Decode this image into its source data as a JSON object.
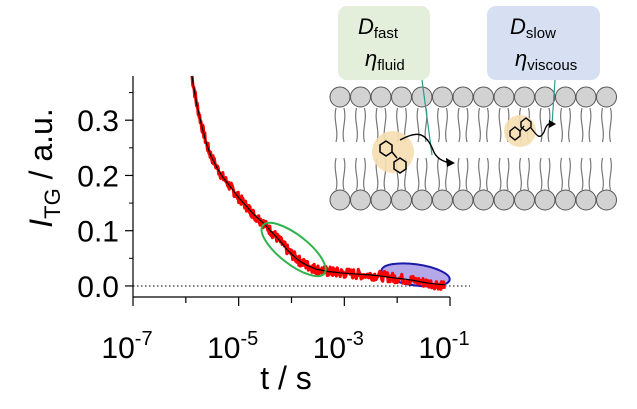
{
  "chart_data": {
    "type": "line",
    "x_scale": "log",
    "xlabel": "t / s",
    "ylabel": {
      "main": "I",
      "sub": "TG",
      "suffix": " / a.u."
    },
    "xlim": [
      1e-07,
      0.1
    ],
    "ylim": [
      -0.02,
      0.38
    ],
    "xticks": [
      {
        "value": 1e-07,
        "base": "10",
        "exp": "-7"
      },
      {
        "value": 1e-05,
        "base": "10",
        "exp": "-5"
      },
      {
        "value": 0.001,
        "base": "10",
        "exp": "-3"
      },
      {
        "value": 0.1,
        "base": "10",
        "exp": "-1"
      }
    ],
    "yticks": [
      {
        "value": 0.0,
        "label": "0.0"
      },
      {
        "value": 0.1,
        "label": "0.1"
      },
      {
        "value": 0.2,
        "label": "0.2"
      },
      {
        "value": 0.3,
        "label": "0.3"
      }
    ],
    "zero_line": {
      "y": 0.0,
      "style": "dotted"
    },
    "series": [
      {
        "role": "measured data",
        "color": "#ff0000",
        "points": [
          [
            1.3e-06,
            0.38
          ],
          [
            1.6e-06,
            0.33
          ],
          [
            2e-06,
            0.29
          ],
          [
            2.5e-06,
            0.255
          ],
          [
            3e-06,
            0.235
          ],
          [
            4e-06,
            0.212
          ],
          [
            5e-06,
            0.197
          ],
          [
            6.5e-06,
            0.183
          ],
          [
            8e-06,
            0.172
          ],
          [
            1e-05,
            0.16
          ],
          [
            1.3e-05,
            0.148
          ],
          [
            1.6e-05,
            0.138
          ],
          [
            2e-05,
            0.128
          ],
          [
            2.5e-05,
            0.12
          ],
          [
            3e-05,
            0.113
          ],
          [
            4e-05,
            0.1
          ],
          [
            5e-05,
            0.09
          ],
          [
            6.5e-05,
            0.078
          ],
          [
            8e-05,
            0.067
          ],
          [
            0.0001,
            0.058
          ],
          [
            0.00013,
            0.048
          ],
          [
            0.00016,
            0.042
          ],
          [
            0.0002,
            0.037
          ],
          [
            0.00025,
            0.033
          ],
          [
            0.0003,
            0.03
          ],
          [
            0.0004,
            0.028
          ],
          [
            0.0005,
            0.026
          ],
          [
            0.00065,
            0.025
          ],
          [
            0.0008,
            0.024
          ],
          [
            0.001,
            0.023
          ],
          [
            0.0015,
            0.022
          ],
          [
            0.002,
            0.021
          ],
          [
            0.003,
            0.02
          ],
          [
            0.004,
            0.019
          ],
          [
            0.006,
            0.017
          ],
          [
            0.008,
            0.015
          ],
          [
            0.01,
            0.014
          ],
          [
            0.015,
            0.012
          ],
          [
            0.02,
            0.01
          ],
          [
            0.03,
            0.007
          ],
          [
            0.04,
            0.005
          ],
          [
            0.06,
            0.003
          ],
          [
            0.08,
            0.002
          ]
        ]
      },
      {
        "role": "fit",
        "color": "#000000",
        "points": [
          [
            1.3e-06,
            0.38
          ],
          [
            1.6e-06,
            0.33
          ],
          [
            2e-06,
            0.29
          ],
          [
            2.5e-06,
            0.255
          ],
          [
            3e-06,
            0.235
          ],
          [
            4e-06,
            0.212
          ],
          [
            5e-06,
            0.197
          ],
          [
            6.5e-06,
            0.183
          ],
          [
            8e-06,
            0.172
          ],
          [
            1e-05,
            0.16
          ],
          [
            1.3e-05,
            0.148
          ],
          [
            1.6e-05,
            0.138
          ],
          [
            2e-05,
            0.128
          ],
          [
            2.5e-05,
            0.12
          ],
          [
            3e-05,
            0.113
          ],
          [
            4e-05,
            0.1
          ],
          [
            5e-05,
            0.09
          ],
          [
            6.5e-05,
            0.078
          ],
          [
            8e-05,
            0.067
          ],
          [
            0.0001,
            0.058
          ],
          [
            0.00013,
            0.048
          ],
          [
            0.00016,
            0.042
          ],
          [
            0.0002,
            0.037
          ],
          [
            0.00025,
            0.033
          ],
          [
            0.0003,
            0.03
          ],
          [
            0.0004,
            0.028
          ],
          [
            0.0005,
            0.026
          ],
          [
            0.00065,
            0.025
          ],
          [
            0.0008,
            0.024
          ],
          [
            0.001,
            0.023
          ],
          [
            0.0015,
            0.022
          ],
          [
            0.002,
            0.021
          ],
          [
            0.003,
            0.02
          ],
          [
            0.004,
            0.019
          ],
          [
            0.006,
            0.017
          ],
          [
            0.008,
            0.015
          ],
          [
            0.01,
            0.014
          ],
          [
            0.015,
            0.012
          ],
          [
            0.02,
            0.01
          ],
          [
            0.03,
            0.007
          ],
          [
            0.04,
            0.005
          ],
          [
            0.06,
            0.003
          ],
          [
            0.08,
            0.002
          ]
        ]
      }
    ],
    "highlights": [
      {
        "name": "fast-component",
        "x_range": [
          2e-05,
          0.0006
        ],
        "y_range": [
          0.022,
          0.11
        ],
        "color": "#2db34a"
      },
      {
        "name": "slow-component",
        "x_range": [
          0.005,
          0.1
        ],
        "y_range": [
          -0.012,
          0.052
        ],
        "color": "#1a1aaa",
        "fill": "#9b8be0"
      }
    ],
    "annotations": [
      {
        "name": "fast-callout",
        "line1": {
          "main": "D",
          "sub": "fast"
        },
        "line2": {
          "main": "η",
          "sub": "fluid"
        },
        "fill": "#e3eedb"
      },
      {
        "name": "slow-callout",
        "line1": {
          "main": "D",
          "sub": "slow"
        },
        "line2": {
          "main": "η",
          "sub": "viscous"
        },
        "fill": "#d6e0f2"
      }
    ],
    "colors": {
      "data": "#ff0000",
      "fit": "#000000",
      "lipid_head": "#d2d2d2",
      "molecule_glow": "#f5deb0"
    }
  }
}
